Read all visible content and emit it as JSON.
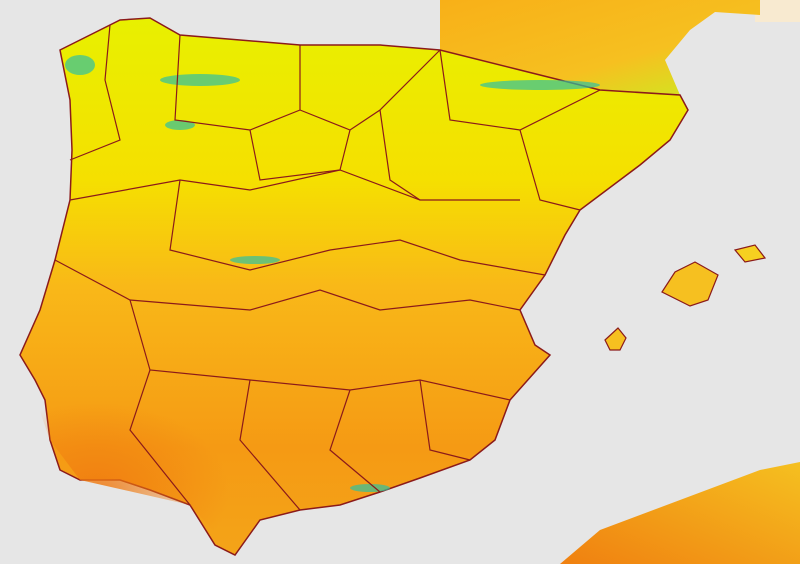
{
  "map": {
    "colors": {
      "sea": "#e6e6e6",
      "land_hot": "#f07a10",
      "land_warm": "#f9a818",
      "land_mild": "#f5e200",
      "land_cool": "#b8f020",
      "land_cold": "#30c0a0",
      "border": "#8b1a1a",
      "outside_pale": "#f8ead0"
    },
    "regions": [
      "iberian-peninsula",
      "france",
      "north-africa",
      "mallorca",
      "menorca",
      "ibiza"
    ]
  }
}
